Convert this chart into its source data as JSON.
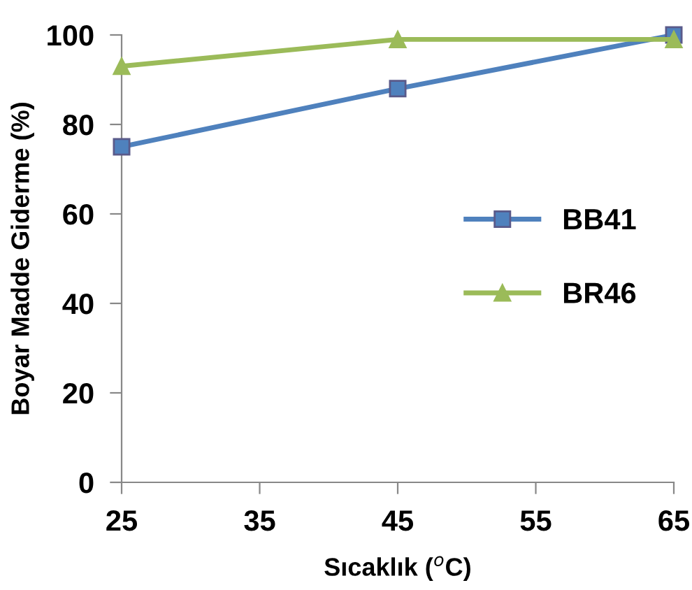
{
  "chart_data": {
    "type": "line",
    "xlabel": "Sıcaklık ($^{o}$C)",
    "ylabel": "Boyar Madde Giderme (%)",
    "x": [
      25,
      45,
      65
    ],
    "xlim": [
      25,
      65
    ],
    "xticks": [
      25,
      35,
      45,
      55,
      65
    ],
    "ylim": [
      0,
      100
    ],
    "yticks": [
      0,
      20,
      40,
      60,
      80,
      100
    ],
    "series": [
      {
        "name": "BB41",
        "color": "#4f81bd",
        "marker": "square",
        "values": [
          75,
          88,
          100
        ]
      },
      {
        "name": "BR46",
        "color": "#9bbb59",
        "marker": "triangle",
        "values": [
          93,
          99,
          99
        ]
      }
    ],
    "legend": "right",
    "grid": false
  }
}
